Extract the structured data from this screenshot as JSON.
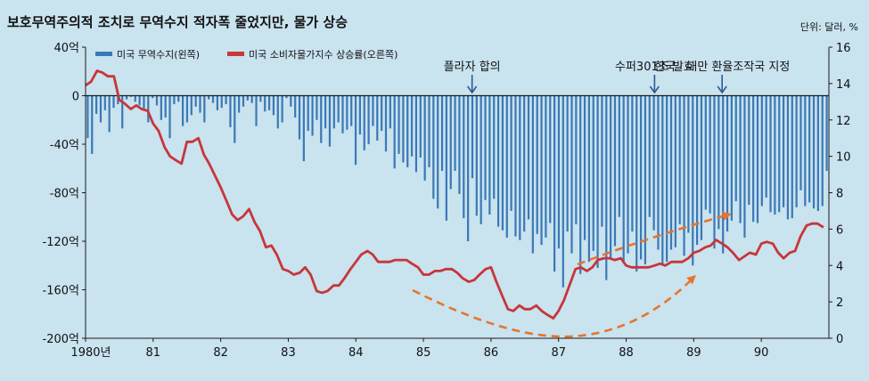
{
  "title": "보호무역주의적 조치로 무역수지 적자폭 줄었지만, 물가 상승",
  "unit_note": "단위: 달러, %",
  "colors": {
    "bars": "#3b78b6",
    "line": "#c8353a",
    "arrows": "#e8742b",
    "background": "#c9e3ef",
    "plot_bg": "#ffffff"
  },
  "chart_data": {
    "type": "bar+line",
    "x_tick_labels": [
      "1980년",
      "81",
      "82",
      "83",
      "84",
      "85",
      "86",
      "87",
      "88",
      "89",
      "90"
    ],
    "left_axis": {
      "ticks": [
        "40억",
        "0",
        "-40억",
        "-80억",
        "-120억",
        "-160억",
        "-200억"
      ],
      "range": [
        -200,
        40
      ],
      "unit": "억 달러"
    },
    "right_axis": {
      "ticks": [
        "16",
        "14",
        "12",
        "10",
        "8",
        "6",
        "4",
        "2",
        "0"
      ],
      "range": [
        0,
        16
      ]
    },
    "legend": [
      "미국 무역수지(왼쪽)",
      "미국 소비자물가지수 상승률(오른쪽)"
    ],
    "annotations": [
      "플라자 합의",
      "수퍼301조 발효",
      "한국 · 대만 환율조작국 지정"
    ],
    "annotation_times": [
      1985.72,
      1988.42,
      1989.42
    ],
    "series": [
      {
        "name": "미국 무역수지(왼쪽)",
        "kind": "bar",
        "values": [
          -35,
          -48,
          -15,
          -22,
          -12,
          -30,
          -10,
          -7,
          -27,
          -3,
          -1,
          -5,
          -8,
          -12,
          -22,
          -2,
          -8,
          -20,
          -18,
          -35,
          -7,
          -5,
          -25,
          -22,
          -16,
          -9,
          -14,
          -22,
          -3,
          -6,
          -12,
          -10,
          -7,
          -26,
          -39,
          -14,
          -9,
          -4,
          -6,
          -25,
          -5,
          -13,
          -12,
          -16,
          -27,
          -22,
          -2,
          -9,
          -18,
          -36,
          -54,
          -29,
          -33,
          -20,
          -39,
          -27,
          -42,
          -27,
          -22,
          -31,
          -28,
          -25,
          -57,
          -32,
          -45,
          -40,
          -25,
          -37,
          -29,
          -46,
          -27,
          -60,
          -48,
          -55,
          -59,
          -50,
          -63,
          -51,
          -70,
          -59,
          -85,
          -93,
          -62,
          -103,
          -77,
          -62,
          -81,
          -101,
          -120,
          -68,
          -99,
          -106,
          -86,
          -98,
          -85,
          -108,
          -111,
          -117,
          -95,
          -116,
          -119,
          -112,
          -102,
          -130,
          -114,
          -123,
          -117,
          -105,
          -145,
          -126,
          -158,
          -112,
          -130,
          -106,
          -147,
          -119,
          -137,
          -128,
          -142,
          -108,
          -152,
          -135,
          -124,
          -100,
          -138,
          -130,
          -112,
          -145,
          -135,
          -139,
          -100,
          -111,
          -127,
          -140,
          -137,
          -127,
          -125,
          -106,
          -132,
          -113,
          -140,
          -123,
          -119,
          -94,
          -97,
          -126,
          -110,
          -130,
          -112,
          -103,
          -87,
          -105,
          -117,
          -90,
          -104,
          -105,
          -91,
          -84,
          -96,
          -98,
          -96,
          -92,
          -102,
          -101,
          -92,
          -78,
          -91,
          -88,
          -93,
          -95,
          -91,
          -62
        ]
      },
      {
        "name": "미국 소비자물가지수 상승률(오른쪽)",
        "kind": "line",
        "points": [
          [
            1980.0,
            13.9
          ],
          [
            1980.08,
            14.1
          ],
          [
            1980.17,
            14.7
          ],
          [
            1980.25,
            14.6
          ],
          [
            1980.33,
            14.4
          ],
          [
            1980.42,
            14.4
          ],
          [
            1980.5,
            13.1
          ],
          [
            1980.58,
            12.9
          ],
          [
            1980.67,
            12.6
          ],
          [
            1980.75,
            12.8
          ],
          [
            1980.83,
            12.6
          ],
          [
            1980.92,
            12.5
          ],
          [
            1981.0,
            11.8
          ],
          [
            1981.08,
            11.4
          ],
          [
            1981.17,
            10.5
          ],
          [
            1981.25,
            10.0
          ],
          [
            1981.33,
            9.8
          ],
          [
            1981.42,
            9.6
          ],
          [
            1981.5,
            10.8
          ],
          [
            1981.58,
            10.8
          ],
          [
            1981.67,
            11.0
          ],
          [
            1981.75,
            10.1
          ],
          [
            1981.83,
            9.6
          ],
          [
            1981.92,
            8.9
          ],
          [
            1982.0,
            8.3
          ],
          [
            1982.08,
            7.6
          ],
          [
            1982.17,
            6.8
          ],
          [
            1982.25,
            6.5
          ],
          [
            1982.33,
            6.7
          ],
          [
            1982.42,
            7.1
          ],
          [
            1982.5,
            6.4
          ],
          [
            1982.58,
            5.9
          ],
          [
            1982.67,
            5.0
          ],
          [
            1982.75,
            5.1
          ],
          [
            1982.83,
            4.6
          ],
          [
            1982.92,
            3.8
          ],
          [
            1983.0,
            3.7
          ],
          [
            1983.08,
            3.5
          ],
          [
            1983.17,
            3.6
          ],
          [
            1983.25,
            3.9
          ],
          [
            1983.33,
            3.5
          ],
          [
            1983.42,
            2.6
          ],
          [
            1983.5,
            2.5
          ],
          [
            1983.58,
            2.6
          ],
          [
            1983.67,
            2.9
          ],
          [
            1983.75,
            2.9
          ],
          [
            1983.83,
            3.3
          ],
          [
            1983.92,
            3.8
          ],
          [
            1984.0,
            4.2
          ],
          [
            1984.08,
            4.6
          ],
          [
            1984.17,
            4.8
          ],
          [
            1984.25,
            4.6
          ],
          [
            1984.33,
            4.2
          ],
          [
            1984.42,
            4.2
          ],
          [
            1984.5,
            4.2
          ],
          [
            1984.58,
            4.3
          ],
          [
            1984.67,
            4.3
          ],
          [
            1984.75,
            4.3
          ],
          [
            1984.83,
            4.1
          ],
          [
            1984.92,
            3.9
          ],
          [
            1985.0,
            3.5
          ],
          [
            1985.08,
            3.5
          ],
          [
            1985.17,
            3.7
          ],
          [
            1985.25,
            3.7
          ],
          [
            1985.33,
            3.8
          ],
          [
            1985.42,
            3.8
          ],
          [
            1985.5,
            3.6
          ],
          [
            1985.58,
            3.3
          ],
          [
            1985.67,
            3.1
          ],
          [
            1985.75,
            3.2
          ],
          [
            1985.83,
            3.5
          ],
          [
            1985.92,
            3.8
          ],
          [
            1986.0,
            3.9
          ],
          [
            1986.08,
            3.1
          ],
          [
            1986.17,
            2.3
          ],
          [
            1986.25,
            1.6
          ],
          [
            1986.33,
            1.5
          ],
          [
            1986.42,
            1.8
          ],
          [
            1986.5,
            1.6
          ],
          [
            1986.58,
            1.6
          ],
          [
            1986.67,
            1.8
          ],
          [
            1986.75,
            1.5
          ],
          [
            1986.83,
            1.3
          ],
          [
            1986.92,
            1.1
          ],
          [
            1987.0,
            1.5
          ],
          [
            1987.08,
            2.1
          ],
          [
            1987.17,
            3.0
          ],
          [
            1987.25,
            3.8
          ],
          [
            1987.33,
            3.9
          ],
          [
            1987.42,
            3.7
          ],
          [
            1987.5,
            3.9
          ],
          [
            1987.58,
            4.3
          ],
          [
            1987.67,
            4.4
          ],
          [
            1987.75,
            4.4
          ],
          [
            1987.83,
            4.3
          ],
          [
            1987.92,
            4.4
          ],
          [
            1988.0,
            4.0
          ],
          [
            1988.08,
            3.9
          ],
          [
            1988.17,
            3.9
          ],
          [
            1988.25,
            3.9
          ],
          [
            1988.33,
            3.9
          ],
          [
            1988.42,
            4.0
          ],
          [
            1988.5,
            4.1
          ],
          [
            1988.58,
            4.0
          ],
          [
            1988.67,
            4.2
          ],
          [
            1988.75,
            4.2
          ],
          [
            1988.83,
            4.2
          ],
          [
            1988.92,
            4.4
          ],
          [
            1989.0,
            4.7
          ],
          [
            1989.08,
            4.8
          ],
          [
            1989.17,
            5.0
          ],
          [
            1989.25,
            5.1
          ],
          [
            1989.33,
            5.4
          ],
          [
            1989.42,
            5.2
          ],
          [
            1989.5,
            5.0
          ],
          [
            1989.58,
            4.7
          ],
          [
            1989.67,
            4.3
          ],
          [
            1989.75,
            4.5
          ],
          [
            1989.83,
            4.7
          ],
          [
            1989.92,
            4.6
          ],
          [
            1990.0,
            5.2
          ],
          [
            1990.08,
            5.3
          ],
          [
            1990.17,
            5.2
          ],
          [
            1990.25,
            4.7
          ],
          [
            1990.33,
            4.4
          ],
          [
            1990.42,
            4.7
          ],
          [
            1990.5,
            4.8
          ],
          [
            1990.58,
            5.6
          ],
          [
            1990.67,
            6.2
          ],
          [
            1990.75,
            6.3
          ],
          [
            1990.83,
            6.3
          ],
          [
            1990.92,
            6.1
          ]
        ]
      }
    ],
    "grid": false,
    "legend_position": "top-left"
  }
}
